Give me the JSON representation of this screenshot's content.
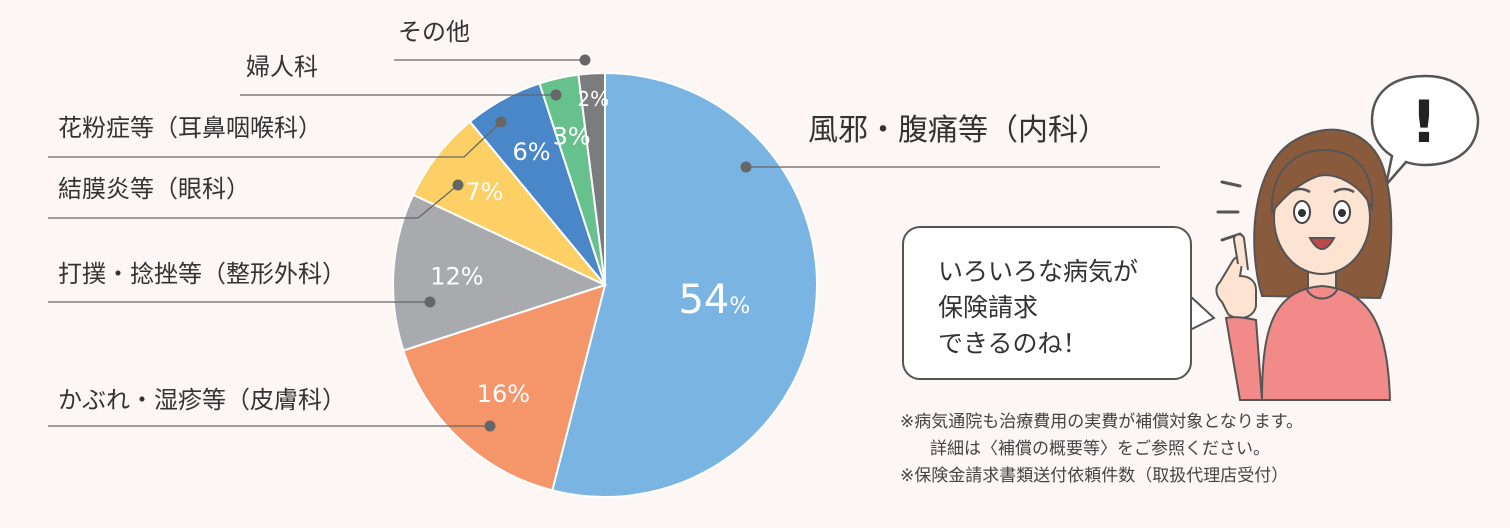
{
  "chart_data": {
    "type": "pie",
    "slices": [
      {
        "label": "風邪・腹痛等（内科）",
        "value": 54,
        "value_label": "54",
        "unit": "%",
        "color": "#7ab4e3"
      },
      {
        "label": "かぶれ・湿疹等（皮膚科）",
        "value": 16,
        "value_label": "16%",
        "color": "#f4956a"
      },
      {
        "label": "打撲・捻挫等（整形外科）",
        "value": 12,
        "value_label": "12%",
        "color": "#a9aaad"
      },
      {
        "label": "結膜炎等（眼科）",
        "value": 7,
        "value_label": "7%",
        "color": "#fdd065"
      },
      {
        "label": "花粉症等（耳鼻咽喉科）",
        "value": 6,
        "value_label": "6%",
        "color": "#4a87c9"
      },
      {
        "label": "婦人科",
        "value": 3,
        "value_label": "3%",
        "color": "#66c18c"
      },
      {
        "label": "その他",
        "value": 2,
        "value_label": "2%",
        "color": "#7b7c7e"
      }
    ]
  },
  "speech_bubble": {
    "lines": [
      "いろいろな病気が",
      "保険請求",
      "できるのね！"
    ]
  },
  "exclamation": "!",
  "notes": {
    "line1": "※病気通院も治療費用の実費が補償対象となります。",
    "line2": "詳細は〈補償の概要等〉をご参照ください。",
    "line3": "※保険金請求書類送付依頼件数（取扱代理店受付）"
  },
  "colors": {
    "background": "#fcf7f4",
    "leader": "#666666",
    "outline": "#555555",
    "skin": "#fde3d1",
    "hair": "#8a5a3c",
    "shirt": "#f28a8a"
  }
}
